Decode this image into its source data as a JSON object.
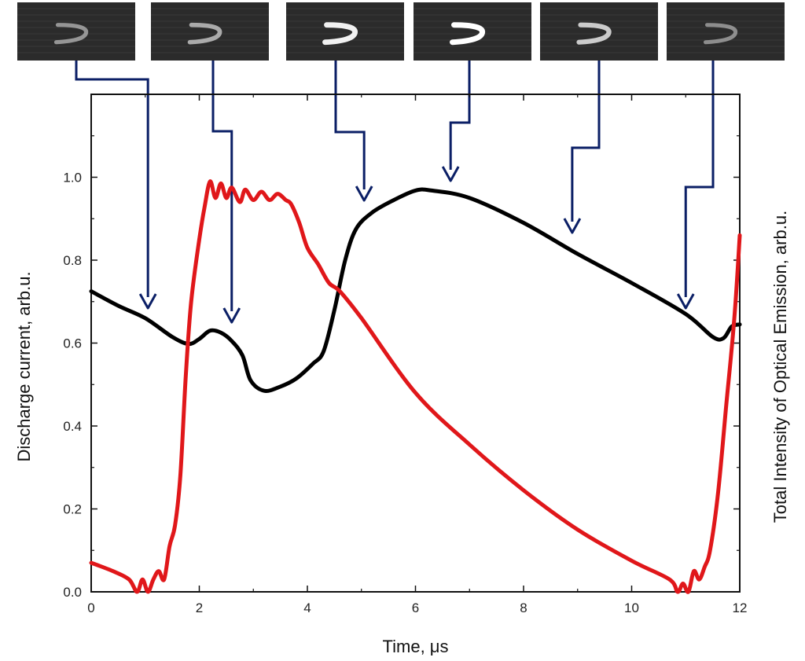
{
  "chart_data": {
    "type": "line",
    "xlabel": "Time, μs",
    "ylabel_left": "Discharge current, arb.u.",
    "ylabel_right": "Total Intensity of Optical Emission, arb.u.",
    "xlim": [
      0,
      12
    ],
    "ylim": [
      0,
      1.2
    ],
    "xticks": [
      "0",
      "2",
      "4",
      "6",
      "8",
      "10",
      "12"
    ],
    "yticks": [
      "0.0",
      "0.2",
      "0.4",
      "0.6",
      "0.8",
      "1.0"
    ],
    "grid": false,
    "series": [
      {
        "color": "#000000",
        "points": [
          [
            0,
            0.725
          ],
          [
            0.5,
            0.69
          ],
          [
            1.0,
            0.66
          ],
          [
            1.5,
            0.615
          ],
          [
            1.8,
            0.598
          ],
          [
            2.0,
            0.61
          ],
          [
            2.2,
            0.63
          ],
          [
            2.4,
            0.625
          ],
          [
            2.6,
            0.605
          ],
          [
            2.8,
            0.57
          ],
          [
            2.95,
            0.51
          ],
          [
            3.2,
            0.485
          ],
          [
            3.5,
            0.495
          ],
          [
            3.8,
            0.515
          ],
          [
            4.1,
            0.55
          ],
          [
            4.3,
            0.58
          ],
          [
            4.5,
            0.68
          ],
          [
            4.7,
            0.8
          ],
          [
            4.9,
            0.875
          ],
          [
            5.2,
            0.915
          ],
          [
            5.6,
            0.945
          ],
          [
            6.0,
            0.968
          ],
          [
            6.3,
            0.968
          ],
          [
            7.0,
            0.95
          ],
          [
            8.0,
            0.89
          ],
          [
            9.0,
            0.815
          ],
          [
            10.0,
            0.745
          ],
          [
            11.0,
            0.67
          ],
          [
            11.5,
            0.615
          ],
          [
            11.7,
            0.612
          ],
          [
            11.85,
            0.64
          ],
          [
            12.0,
            0.645
          ]
        ]
      },
      {
        "color": "#e0171a",
        "points": [
          [
            0,
            0.07
          ],
          [
            0.4,
            0.05
          ],
          [
            0.7,
            0.03
          ],
          [
            0.85,
            0.0
          ],
          [
            0.95,
            0.03
          ],
          [
            1.05,
            0.0
          ],
          [
            1.15,
            0.03
          ],
          [
            1.25,
            0.05
          ],
          [
            1.35,
            0.03
          ],
          [
            1.45,
            0.11
          ],
          [
            1.55,
            0.16
          ],
          [
            1.65,
            0.28
          ],
          [
            1.75,
            0.52
          ],
          [
            1.85,
            0.7
          ],
          [
            2.0,
            0.85
          ],
          [
            2.1,
            0.93
          ],
          [
            2.2,
            0.99
          ],
          [
            2.3,
            0.95
          ],
          [
            2.4,
            0.985
          ],
          [
            2.5,
            0.95
          ],
          [
            2.6,
            0.975
          ],
          [
            2.75,
            0.94
          ],
          [
            2.85,
            0.97
          ],
          [
            3.0,
            0.945
          ],
          [
            3.15,
            0.965
          ],
          [
            3.3,
            0.945
          ],
          [
            3.45,
            0.96
          ],
          [
            3.6,
            0.945
          ],
          [
            3.7,
            0.935
          ],
          [
            3.85,
            0.89
          ],
          [
            4.0,
            0.83
          ],
          [
            4.2,
            0.79
          ],
          [
            4.4,
            0.745
          ],
          [
            4.6,
            0.725
          ],
          [
            5.0,
            0.66
          ],
          [
            6.0,
            0.48
          ],
          [
            7.0,
            0.355
          ],
          [
            8.0,
            0.245
          ],
          [
            9.0,
            0.15
          ],
          [
            10.0,
            0.075
          ],
          [
            10.7,
            0.03
          ],
          [
            10.85,
            0.0
          ],
          [
            10.95,
            0.02
          ],
          [
            11.05,
            0.0
          ],
          [
            11.15,
            0.05
          ],
          [
            11.25,
            0.03
          ],
          [
            11.35,
            0.06
          ],
          [
            11.45,
            0.1
          ],
          [
            11.6,
            0.24
          ],
          [
            11.75,
            0.45
          ],
          [
            11.9,
            0.66
          ],
          [
            12.0,
            0.86
          ]
        ]
      }
    ],
    "frames": [
      {
        "brightness": 0.55,
        "callout_x": 1.05
      },
      {
        "brightness": 0.65,
        "callout_x": 2.6
      },
      {
        "brightness": 0.95,
        "callout_x": 5.05
      },
      {
        "brightness": 1.0,
        "callout_x": 6.65
      },
      {
        "brightness": 0.8,
        "callout_x": 8.9
      },
      {
        "brightness": 0.5,
        "callout_x": 11.0
      }
    ],
    "colors": {
      "frame_bg": "#2b2b2b",
      "callout": "#0b1f66"
    }
  }
}
